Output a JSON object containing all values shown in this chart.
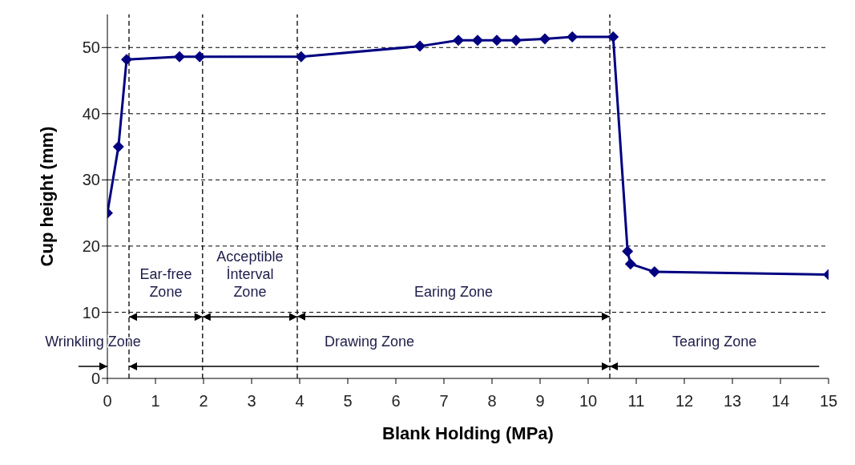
{
  "chart_data": {
    "type": "line",
    "xlabel": "Blank Holding (MPa)",
    "ylabel": "Cup height (mm)",
    "x": [
      0,
      0.23,
      0.4,
      1.5,
      1.92,
      4.03,
      6.5,
      7.3,
      7.7,
      8.1,
      8.5,
      9.1,
      9.67,
      10.52,
      10.82,
      10.88,
      11.38,
      15.0
    ],
    "series": [
      {
        "color": "#000080",
        "values": [
          25,
          35,
          48.2,
          48.6,
          48.6,
          48.6,
          50.2,
          51.1,
          51.1,
          51.1,
          51.1,
          51.3,
          51.6,
          51.6,
          19.2,
          17.3,
          16.1,
          15.7
        ]
      }
    ],
    "xlim": [
      0,
      15
    ],
    "xticks": [
      0,
      1,
      2,
      3,
      4,
      5,
      6,
      7,
      8,
      9,
      10,
      11,
      12,
      13,
      14,
      15
    ],
    "ylim": [
      0,
      55
    ],
    "yticks": [
      0,
      10,
      20,
      30,
      40,
      50
    ],
    "grid": "y",
    "legend": false,
    "marker": "diamond",
    "line_style": "solid",
    "ref_lines": [
      {
        "axis": "x",
        "value": 0.45,
        "line_style": "dashed",
        "color": "#000000"
      },
      {
        "axis": "x",
        "value": 1.98,
        "line_style": "dashed",
        "color": "#000000"
      },
      {
        "axis": "x",
        "value": 3.95,
        "line_style": "dashed",
        "color": "#000000"
      },
      {
        "axis": "x",
        "value": 10.45,
        "line_style": "dashed",
        "color": "#000000"
      }
    ],
    "annotations": [
      {
        "text": "Ear-free\nZone",
        "x": 1.98,
        "y": 9.3
      },
      {
        "text": "Acceptible\nİnterval\nZone",
        "x": 3.95,
        "y": 9.3
      },
      "Earing Zone",
      "Wrinkling Zone",
      "Drawing Zone",
      "Tearing Zone"
    ]
  }
}
